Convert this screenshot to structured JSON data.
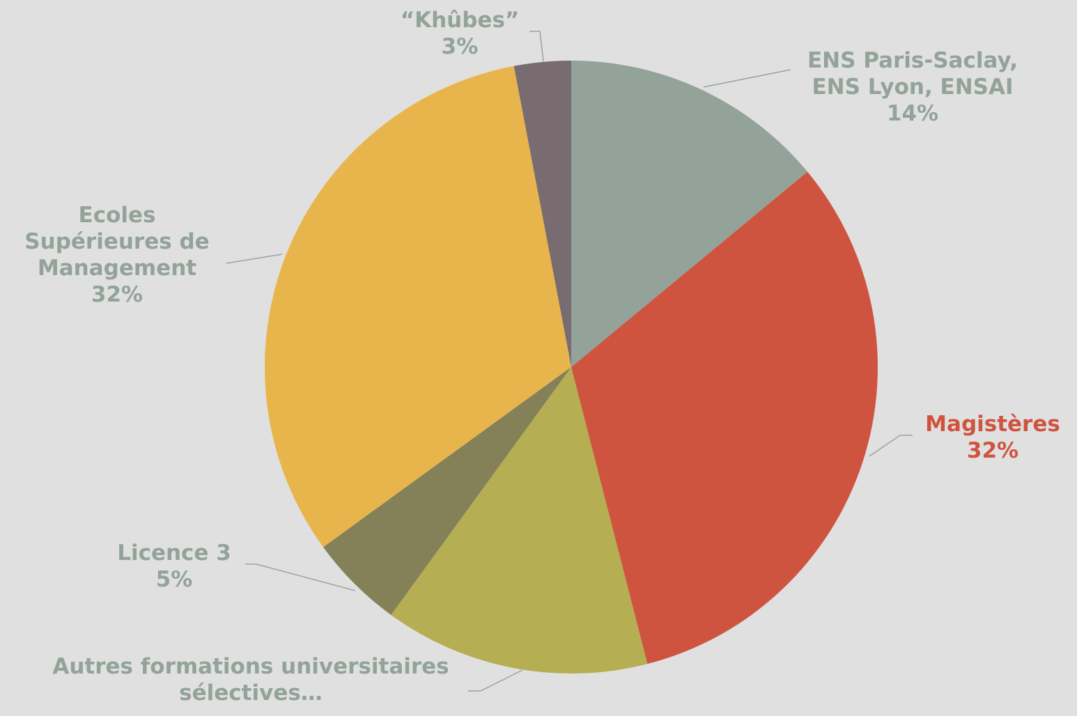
{
  "chart_data": {
    "type": "pie",
    "categories": [
      "ENS Paris-Saclay, ENS Lyon, ENSAI",
      "Magistères",
      "Autres formations universitaires sélectives…",
      "Licence 3",
      "Ecoles Supérieures de Management",
      "“Khûbes”"
    ],
    "values": [
      14,
      32,
      14,
      5,
      32,
      3
    ],
    "value_labels": [
      "14%",
      "32%",
      null,
      "5%",
      "32%",
      "3%"
    ],
    "colors": [
      "#93a399",
      "#cf543f",
      "#b5ae53",
      "#848058",
      "#e8b54d",
      "#786c71"
    ],
    "label_colors": [
      "#93a399",
      "#cf543f",
      "#93a399",
      "#93a399",
      "#93a399",
      "#93a399"
    ]
  }
}
